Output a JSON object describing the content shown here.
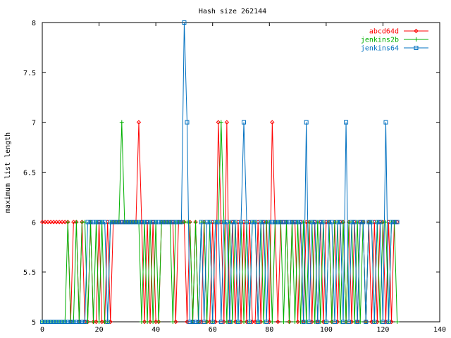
{
  "chart_data": {
    "type": "line",
    "title": "Hash size 262144",
    "xlabel": "",
    "ylabel": "maximum list length",
    "xlim": [
      0,
      140
    ],
    "ylim": [
      5,
      8
    ],
    "xticks": [
      0,
      20,
      40,
      60,
      80,
      100,
      120,
      140
    ],
    "yticks": [
      5,
      5.5,
      6,
      6.5,
      7,
      7.5,
      8
    ],
    "xtick_labels": [
      "0",
      "20",
      "40",
      "60",
      "80",
      "100",
      "120",
      "140"
    ],
    "ytick_labels": [
      "5",
      "5.5",
      "6",
      "6.5",
      "7",
      "7.5",
      "8"
    ],
    "grid": false,
    "legend_position": "top-right",
    "series": [
      {
        "name": "abcd64d",
        "color": "#ff0000",
        "marker": "diamond",
        "x": [
          0,
          1,
          2,
          3,
          4,
          5,
          6,
          7,
          8,
          9,
          10,
          11,
          12,
          13,
          14,
          15,
          16,
          17,
          18,
          19,
          20,
          21,
          22,
          23,
          24,
          25,
          26,
          27,
          28,
          29,
          30,
          31,
          32,
          33,
          34,
          35,
          36,
          37,
          38,
          39,
          40,
          41,
          42,
          43,
          44,
          45,
          46,
          47,
          48,
          49,
          50,
          51,
          52,
          53,
          54,
          55,
          56,
          57,
          58,
          59,
          60,
          61,
          62,
          63,
          64,
          65,
          66,
          67,
          68,
          69,
          70,
          71,
          72,
          73,
          74,
          75,
          76,
          77,
          78,
          79,
          80,
          81,
          82,
          83,
          84,
          85,
          86,
          87,
          88,
          89,
          90,
          91,
          92,
          93,
          94,
          95,
          96,
          97,
          98,
          99,
          100,
          101,
          102,
          103,
          104,
          105,
          106,
          107,
          108,
          109,
          110,
          111,
          112,
          113,
          114,
          115,
          116,
          117,
          118,
          119,
          120,
          121,
          122,
          123,
          124,
          125
        ],
        "y": [
          6,
          6,
          6,
          6,
          6,
          6,
          6,
          6,
          6,
          6,
          5,
          6,
          6,
          5,
          6,
          5,
          5,
          6,
          5,
          5,
          6,
          5,
          5,
          6,
          5,
          6,
          6,
          6,
          6,
          6,
          6,
          6,
          6,
          6,
          7,
          6,
          5,
          6,
          5,
          6,
          5,
          5,
          6,
          6,
          6,
          6,
          6,
          5,
          6,
          6,
          6,
          5,
          6,
          5,
          6,
          5,
          5,
          6,
          5,
          5,
          6,
          5,
          7,
          6,
          5,
          7,
          5,
          6,
          5,
          6,
          5,
          6,
          5,
          6,
          5,
          5,
          6,
          5,
          6,
          6,
          5,
          7,
          6,
          5,
          6,
          6,
          6,
          5,
          6,
          6,
          5,
          6,
          5,
          6,
          6,
          5,
          6,
          5,
          6,
          5,
          6,
          6,
          5,
          6,
          5,
          6,
          6,
          5,
          6,
          5,
          6,
          5,
          6,
          6,
          5,
          6,
          5,
          6,
          5,
          6,
          6,
          5,
          6,
          5,
          6,
          6
        ]
      },
      {
        "name": "jenkins2b",
        "color": "#00b000",
        "marker": "plus",
        "x": [
          0,
          1,
          2,
          3,
          4,
          5,
          6,
          7,
          8,
          9,
          10,
          11,
          12,
          13,
          14,
          15,
          16,
          17,
          18,
          19,
          20,
          21,
          22,
          23,
          24,
          25,
          26,
          27,
          28,
          29,
          30,
          31,
          32,
          33,
          34,
          35,
          36,
          37,
          38,
          39,
          40,
          41,
          42,
          43,
          44,
          45,
          46,
          47,
          48,
          49,
          50,
          51,
          52,
          53,
          54,
          55,
          56,
          57,
          58,
          59,
          60,
          61,
          62,
          63,
          64,
          65,
          66,
          67,
          68,
          69,
          70,
          71,
          72,
          73,
          74,
          75,
          76,
          77,
          78,
          79,
          80,
          81,
          82,
          83,
          84,
          85,
          86,
          87,
          88,
          89,
          90,
          91,
          92,
          93,
          94,
          95,
          96,
          97,
          98,
          99,
          100,
          101,
          102,
          103,
          104,
          105,
          106,
          107,
          108,
          109,
          110,
          111,
          112,
          113,
          114,
          115,
          116,
          117,
          118,
          119,
          120,
          121,
          122,
          123,
          124,
          125
        ],
        "y": [
          5,
          5,
          5,
          5,
          5,
          5,
          5,
          5,
          5,
          6,
          5,
          5,
          6,
          5,
          6,
          6,
          5,
          6,
          5,
          6,
          5,
          6,
          5,
          5,
          6,
          6,
          6,
          6,
          7,
          6,
          6,
          6,
          6,
          6,
          6,
          5,
          6,
          5,
          6,
          5,
          6,
          5,
          6,
          6,
          6,
          6,
          5,
          6,
          6,
          6,
          6,
          6,
          6,
          5,
          6,
          5,
          6,
          6,
          5,
          6,
          5,
          6,
          6,
          7,
          6,
          5,
          6,
          5,
          6,
          5,
          6,
          5,
          6,
          5,
          6,
          6,
          5,
          6,
          5,
          6,
          6,
          5,
          6,
          6,
          6,
          5,
          6,
          5,
          6,
          5,
          6,
          5,
          6,
          5,
          6,
          6,
          5,
          6,
          5,
          6,
          5,
          6,
          5,
          6,
          6,
          5,
          6,
          5,
          6,
          6,
          5,
          6,
          5,
          6,
          5,
          6,
          6,
          5,
          6,
          5,
          6,
          6,
          5,
          6,
          6,
          5
        ]
      },
      {
        "name": "jenkins64",
        "color": "#0070c0",
        "marker": "square",
        "x": [
          0,
          1,
          2,
          3,
          4,
          5,
          6,
          7,
          8,
          9,
          10,
          11,
          12,
          13,
          14,
          15,
          16,
          17,
          18,
          19,
          20,
          21,
          22,
          23,
          24,
          25,
          26,
          27,
          28,
          29,
          30,
          31,
          32,
          33,
          34,
          35,
          36,
          37,
          38,
          39,
          40,
          41,
          42,
          43,
          44,
          45,
          46,
          47,
          48,
          49,
          50,
          51,
          52,
          53,
          54,
          55,
          56,
          57,
          58,
          59,
          60,
          61,
          62,
          63,
          64,
          65,
          66,
          67,
          68,
          69,
          70,
          71,
          72,
          73,
          74,
          75,
          76,
          77,
          78,
          79,
          80,
          81,
          82,
          83,
          84,
          85,
          86,
          87,
          88,
          89,
          90,
          91,
          92,
          93,
          94,
          95,
          96,
          97,
          98,
          99,
          100,
          101,
          102,
          103,
          104,
          105,
          106,
          107,
          108,
          109,
          110,
          111,
          112,
          113,
          114,
          115,
          116,
          117,
          118,
          119,
          120,
          121,
          122,
          123,
          124,
          125
        ],
        "y": [
          5,
          5,
          5,
          5,
          5,
          5,
          5,
          5,
          5,
          5,
          5,
          5,
          5,
          5,
          5,
          5,
          6,
          6,
          6,
          6,
          6,
          6,
          6,
          5,
          6,
          6,
          6,
          6,
          6,
          6,
          6,
          6,
          6,
          6,
          6,
          6,
          6,
          6,
          6,
          6,
          6,
          6,
          6,
          6,
          6,
          6,
          6,
          6,
          6,
          6,
          8,
          7,
          5,
          5,
          5,
          5,
          6,
          5,
          6,
          6,
          5,
          6,
          6,
          5,
          6,
          6,
          5,
          6,
          6,
          5,
          6,
          7,
          6,
          5,
          6,
          6,
          5,
          6,
          6,
          5,
          6,
          6,
          6,
          6,
          6,
          6,
          6,
          6,
          6,
          6,
          6,
          6,
          5,
          7,
          5,
          6,
          6,
          5,
          6,
          6,
          5,
          6,
          6,
          5,
          6,
          6,
          5,
          7,
          5,
          6,
          6,
          5,
          6,
          6,
          5,
          6,
          6,
          5,
          6,
          6,
          5,
          7,
          5,
          6,
          6,
          6
        ]
      }
    ]
  }
}
